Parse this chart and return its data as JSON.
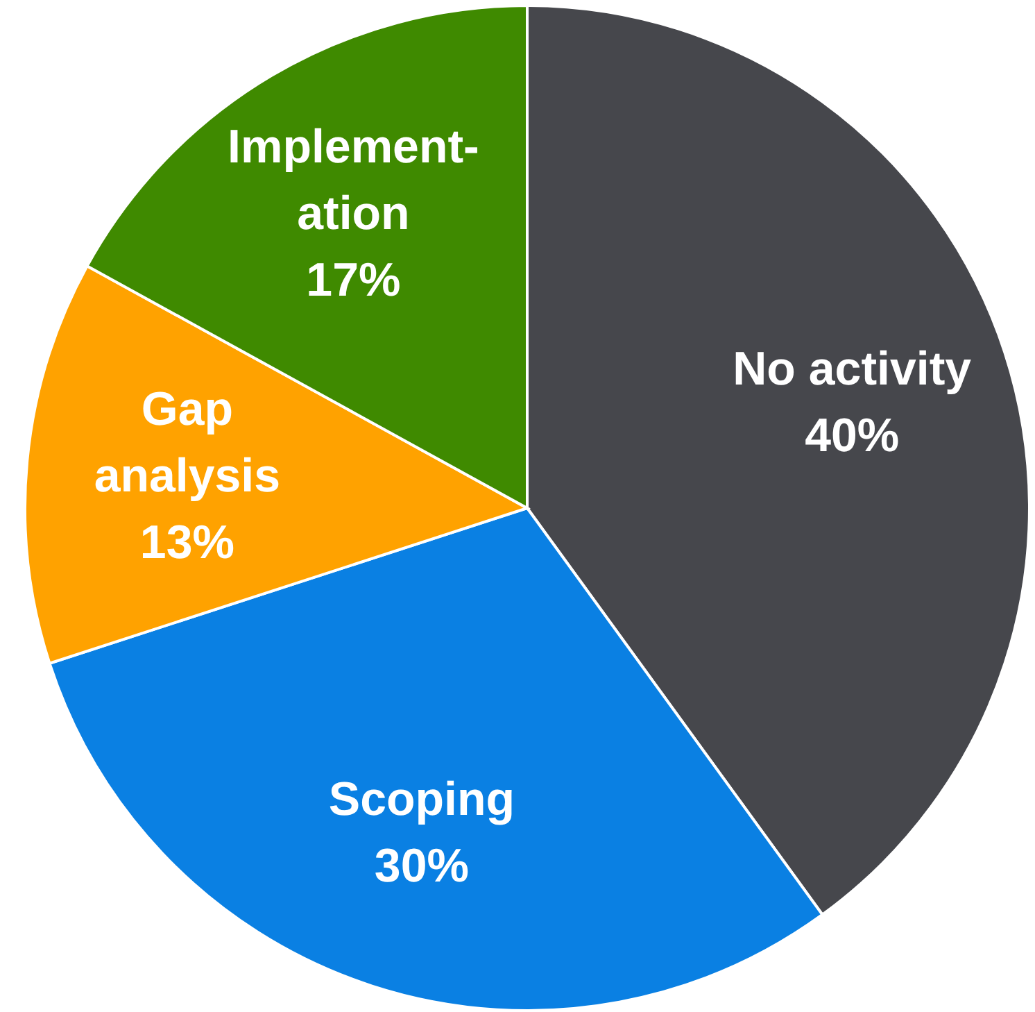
{
  "chart_data": {
    "type": "pie",
    "categories": [
      "No activity",
      "Scoping",
      "Gap\nanalysis",
      "Implement-\nation"
    ],
    "values": [
      40,
      30,
      13,
      17
    ],
    "value_labels": [
      "40%",
      "30%",
      "13%",
      "17%"
    ],
    "colors": [
      "#46474c",
      "#0a80e3",
      "#ffa200",
      "#3f8a00"
    ]
  }
}
